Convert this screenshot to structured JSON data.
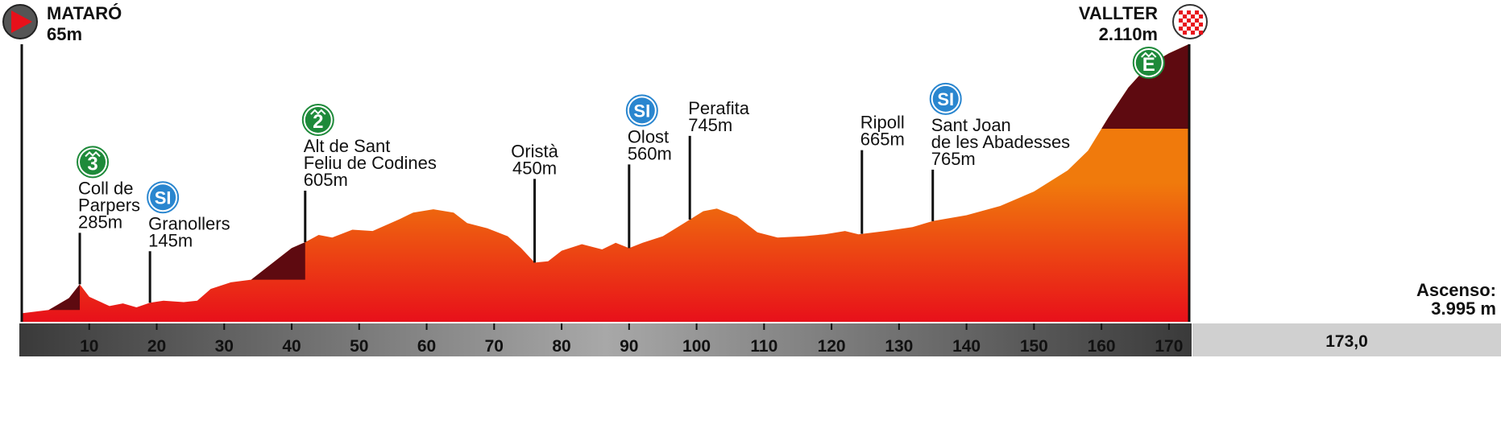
{
  "chart_data": {
    "type": "area",
    "title": "",
    "xlabel": "",
    "ylabel": "",
    "xlim": [
      0,
      173
    ],
    "ylim": [
      0,
      2200
    ],
    "x_ticks": [
      10,
      20,
      30,
      40,
      50,
      60,
      70,
      80,
      90,
      100,
      110,
      120,
      130,
      140,
      150,
      160,
      170
    ],
    "total_distance": "173,0",
    "ascent": {
      "label": "Ascenso:",
      "value": "3.995 m"
    },
    "start": {
      "name": "MATARÓ",
      "alt": "65m",
      "km": 0,
      "icon": "start-flag-icon"
    },
    "finish": {
      "name": "VALLTER",
      "alt": "2.110m",
      "km": 173,
      "icon": "finish-flag-icon"
    },
    "profile": [
      [
        0,
        65
      ],
      [
        4,
        90
      ],
      [
        7,
        180
      ],
      [
        8.6,
        285
      ],
      [
        10,
        190
      ],
      [
        13,
        120
      ],
      [
        15,
        140
      ],
      [
        17,
        110
      ],
      [
        19,
        145
      ],
      [
        21,
        160
      ],
      [
        24,
        150
      ],
      [
        26,
        160
      ],
      [
        28,
        250
      ],
      [
        31,
        300
      ],
      [
        34,
        320
      ],
      [
        37,
        440
      ],
      [
        40,
        560
      ],
      [
        42,
        605
      ],
      [
        44,
        660
      ],
      [
        46,
        640
      ],
      [
        49,
        700
      ],
      [
        52,
        690
      ],
      [
        56,
        780
      ],
      [
        58,
        830
      ],
      [
        61,
        855
      ],
      [
        64,
        830
      ],
      [
        66,
        750
      ],
      [
        69,
        710
      ],
      [
        72,
        650
      ],
      [
        74,
        560
      ],
      [
        76,
        450
      ],
      [
        78,
        460
      ],
      [
        80,
        540
      ],
      [
        83,
        590
      ],
      [
        86,
        550
      ],
      [
        88,
        600
      ],
      [
        90,
        560
      ],
      [
        92,
        600
      ],
      [
        95,
        650
      ],
      [
        98,
        745
      ],
      [
        101,
        840
      ],
      [
        103,
        860
      ],
      [
        106,
        800
      ],
      [
        109,
        680
      ],
      [
        112,
        640
      ],
      [
        116,
        650
      ],
      [
        119,
        665
      ],
      [
        122,
        690
      ],
      [
        124,
        665
      ],
      [
        128,
        690
      ],
      [
        132,
        720
      ],
      [
        135,
        765
      ],
      [
        140,
        810
      ],
      [
        145,
        880
      ],
      [
        150,
        990
      ],
      [
        155,
        1150
      ],
      [
        158,
        1300
      ],
      [
        161,
        1550
      ],
      [
        164,
        1780
      ],
      [
        167,
        1950
      ],
      [
        170,
        2040
      ],
      [
        173,
        2110
      ]
    ],
    "climb_highlights": [
      {
        "from": 4,
        "to": 8.6
      },
      {
        "from": 34,
        "to": 42
      },
      {
        "from": 160,
        "to": 173
      }
    ],
    "waypoints": [
      {
        "lines": [
          "Coll de",
          "Parpers",
          "285m"
        ],
        "km": 8.6,
        "badge": "3",
        "badge_type": "category"
      },
      {
        "lines": [
          "Granollers",
          "145m"
        ],
        "km": 19,
        "badge": "SI",
        "badge_type": "sprint"
      },
      {
        "lines": [
          "Alt de Sant",
          "Feliu de Codines",
          "605m"
        ],
        "km": 42,
        "badge": "2",
        "badge_type": "category"
      },
      {
        "lines": [
          "Oristà",
          "450m"
        ],
        "km": 76,
        "badge": "",
        "badge_type": "none"
      },
      {
        "lines": [
          "Olost",
          "560m"
        ],
        "km": 90,
        "badge": "SI",
        "badge_type": "sprint"
      },
      {
        "lines": [
          "Perafita",
          "745m"
        ],
        "km": 99,
        "badge": "",
        "badge_type": "none"
      },
      {
        "lines": [
          "Ripoll",
          "665m"
        ],
        "km": 124.5,
        "badge": "",
        "badge_type": "none"
      },
      {
        "lines": [
          "Sant Joan",
          "de les Abadesses",
          "765m"
        ],
        "km": 135,
        "badge": "SI",
        "badge_type": "sprint"
      }
    ],
    "summit_badge": {
      "label": "E",
      "badge_type": "special",
      "km": 167
    },
    "colors": {
      "profile_low": "#e8101a",
      "profile_high": "#f07a0c",
      "climb": "#5e0a10",
      "axis_bar_edge": "#3a3a3a",
      "axis_bar_center": "#a8a8a8",
      "sprint_badge": "#2a86cf",
      "category_badge": "#1e8a3a",
      "total_box": "#d0d0d0"
    }
  }
}
